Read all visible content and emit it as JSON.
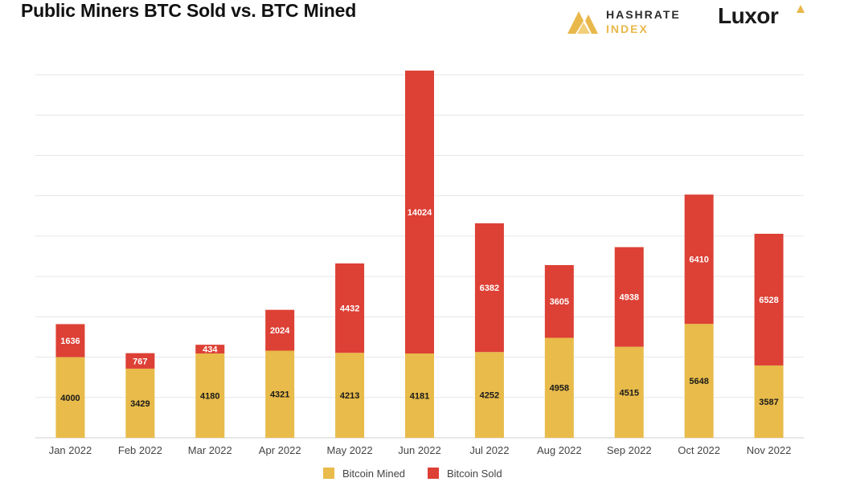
{
  "header": {
    "title": "Public Miners BTC Sold vs. BTC Mined",
    "logo_hashrate_line1": "HASHRATE",
    "logo_hashrate_line2": "INDEX",
    "logo_luxor": "Luxor"
  },
  "colors": {
    "mined": "#e8bb4a",
    "sold": "#dd4035",
    "grid": "#e6e6e6",
    "axis_text": "#444444"
  },
  "chart_data": {
    "type": "bar",
    "stacked": true,
    "title": "Public Miners BTC Sold vs. BTC Mined",
    "xlabel": "",
    "ylabel": "",
    "categories": [
      "Jan 2022",
      "Feb 2022",
      "Mar 2022",
      "Apr 2022",
      "May 2022",
      "Jun 2022",
      "Jul 2022",
      "Aug 2022",
      "Sep 2022",
      "Oct 2022",
      "Nov 2022"
    ],
    "series": [
      {
        "name": "Bitcoin Mined",
        "values": [
          4000,
          3429,
          4180,
          4321,
          4213,
          4181,
          4252,
          4958,
          4515,
          5648,
          3587
        ]
      },
      {
        "name": "Bitcoin Sold",
        "values": [
          1636,
          767,
          434,
          2024,
          4432,
          14024,
          6382,
          3605,
          4938,
          6410,
          6528
        ]
      }
    ],
    "ylim": [
      0,
      18000
    ],
    "grid": true,
    "legend": "bottom"
  }
}
